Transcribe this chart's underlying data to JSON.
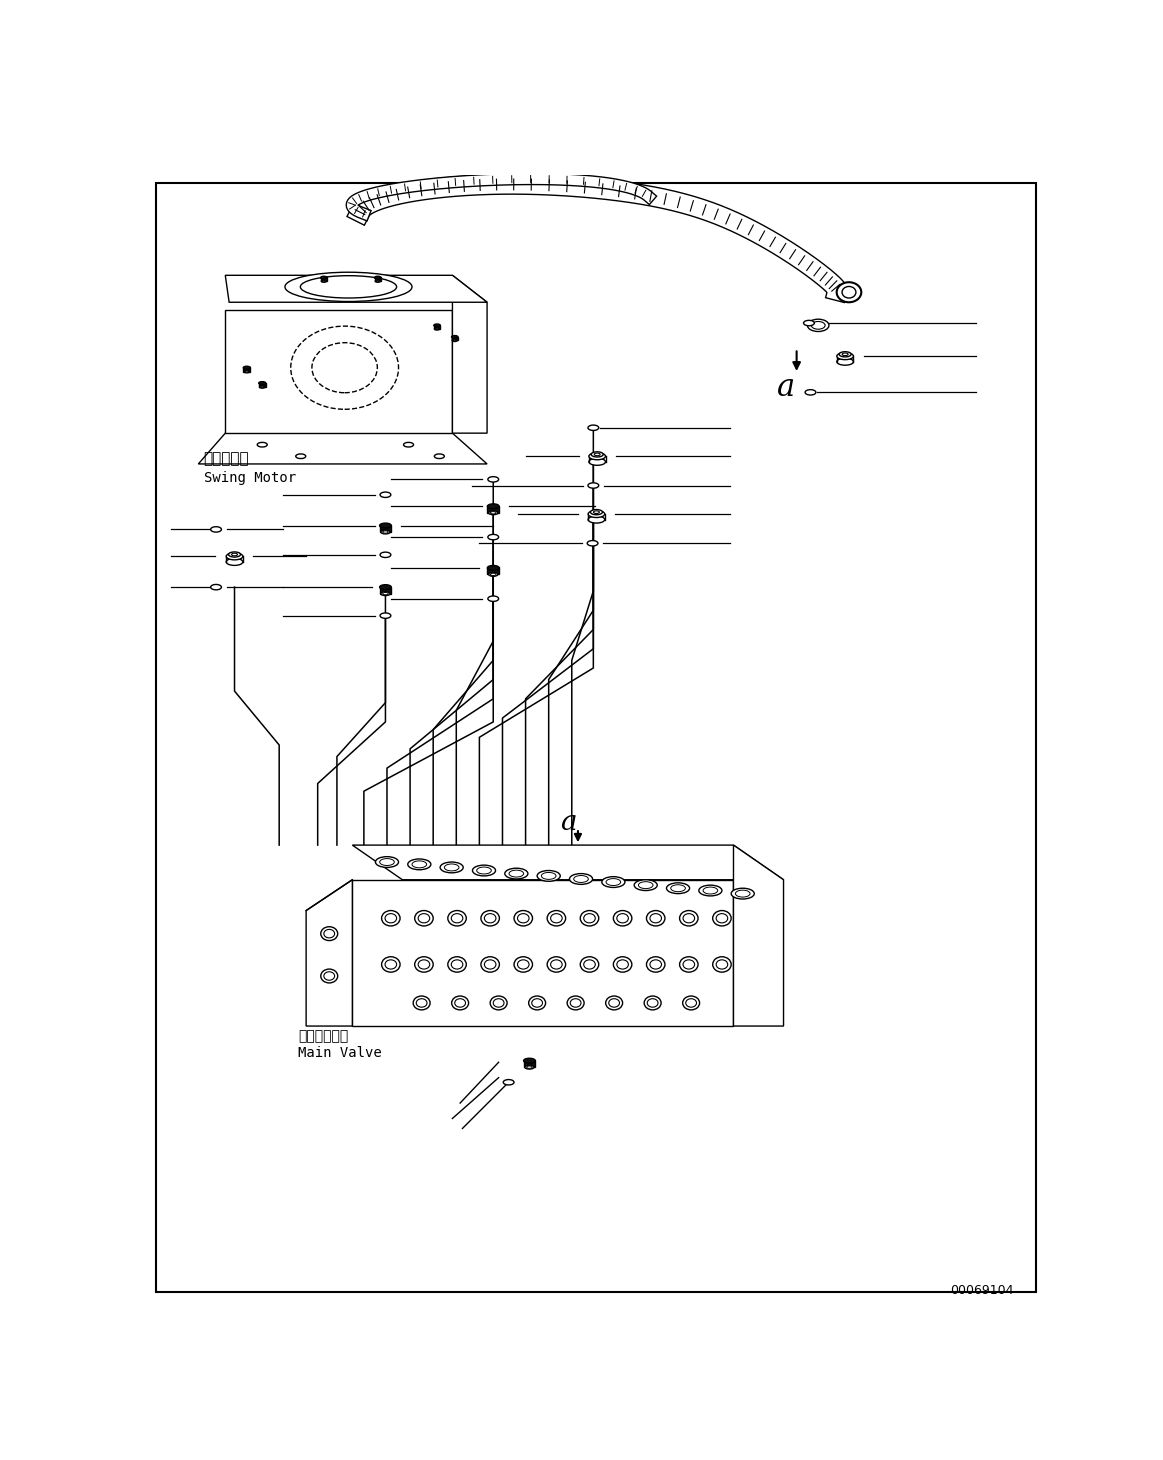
{
  "bg_color": "#ffffff",
  "line_color": "#000000",
  "fig_width": 11.63,
  "fig_height": 14.6,
  "watermark": "00069104",
  "swing_motor_jp": "旋回モータ",
  "swing_motor_en": "Swing Motor",
  "main_valve_jp": "メインバルブ",
  "main_valve_en": "Main Valve"
}
